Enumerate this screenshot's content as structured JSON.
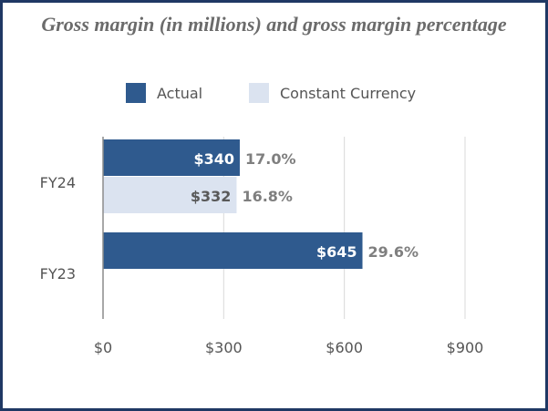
{
  "chart_data": {
    "type": "bar",
    "orientation": "horizontal",
    "title": "Gross margin (in millions) and gross margin percentage",
    "categories": [
      "FY24",
      "FY23"
    ],
    "series": [
      {
        "name": "Actual",
        "color": "#2f5a8e",
        "values": [
          340,
          645
        ],
        "labels": [
          "$340",
          "$645"
        ],
        "percent_labels": [
          "17.0%",
          "29.6%"
        ]
      },
      {
        "name": "Constant Currency",
        "color": "#dbe3f0",
        "values": [
          332,
          null
        ],
        "labels": [
          "$332",
          null
        ],
        "percent_labels": [
          "16.8%",
          null
        ]
      }
    ],
    "xlim": [
      0,
      900
    ],
    "xticks": [
      0,
      300,
      600,
      900
    ],
    "xtick_labels": [
      "$0",
      "$300",
      "$600",
      "$900"
    ],
    "grid": true,
    "legend_position": "top"
  },
  "colors": {
    "frame": "#1f3864",
    "title": "#6b6b6b",
    "percent_label": "#7f7f7f"
  }
}
